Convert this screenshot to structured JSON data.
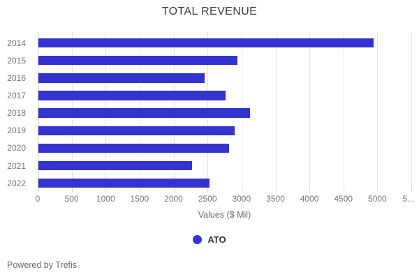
{
  "title": "TOTAL REVENUE",
  "footer": {
    "text": "Powered by Trefis"
  },
  "legend": {
    "position": "bottom-center",
    "items": [
      {
        "label": "ATO",
        "color": "#3533cd"
      }
    ]
  },
  "colors": {
    "bar": "#3533cd",
    "axis_line": "#c5c8e0",
    "gridline": "#e6e6e6",
    "tick": "#d9d9d9",
    "title_text": "#3e3e3e",
    "axis_text": "#757575",
    "legend_text": "#333333",
    "footer_text": "#6b6b6b",
    "background": "#ffffff"
  },
  "chart_data": {
    "type": "bar",
    "orientation": "horizontal",
    "title": "TOTAL REVENUE",
    "xlabel": "Values ($ Mil)",
    "ylabel": "",
    "categories": [
      "2014",
      "2015",
      "2016",
      "2017",
      "2018",
      "2019",
      "2020",
      "2021",
      "2022"
    ],
    "series": [
      {
        "name": "ATO",
        "color": "#3533cd",
        "values": [
          4930,
          2925,
          2450,
          2750,
          3110,
          2890,
          2810,
          2265,
          2520
        ]
      }
    ],
    "xlim": [
      0,
      5500
    ],
    "x_ticks": [
      0,
      500,
      1000,
      1500,
      2000,
      2500,
      3000,
      3500,
      4000,
      4500,
      5000,
      5500
    ],
    "x_tick_labels": [
      "0",
      "500",
      "1000",
      "1500",
      "2000",
      "2500",
      "3000",
      "3500",
      "4000",
      "4500",
      "5000",
      "5..."
    ],
    "grid": "vertical-only",
    "legend_position": "bottom"
  }
}
